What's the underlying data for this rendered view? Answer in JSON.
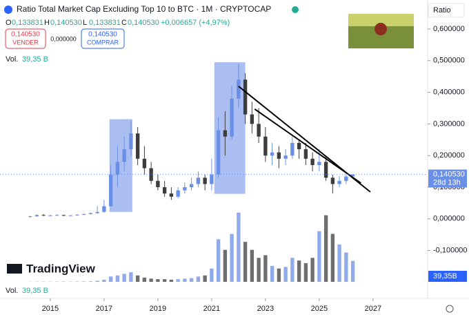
{
  "chart_data": {
    "type": "candlestick",
    "title": "Ratio Total Market Cap Excluding Top 10 to BTC · 1M · CRYPTOCAP",
    "x": [
      2014.25,
      2014.5,
      2014.75,
      2015,
      2015.25,
      2015.5,
      2015.75,
      2016,
      2016.25,
      2016.5,
      2016.75,
      2017,
      2017.25,
      2017.5,
      2017.75,
      2018,
      2018.25,
      2018.5,
      2018.75,
      2019,
      2019.25,
      2019.5,
      2019.75,
      2020,
      2020.25,
      2020.5,
      2020.75,
      2021,
      2021.25,
      2021.5,
      2021.75,
      2022,
      2022.25,
      2022.5,
      2022.75,
      2023,
      2023.25,
      2023.5,
      2023.75,
      2024,
      2024.25,
      2024.5,
      2024.75,
      2025,
      2025.25,
      2025.5,
      2025.75,
      2026,
      2026.25
    ],
    "open": [
      0.006,
      0.008,
      0.012,
      0.01,
      0.011,
      0.012,
      0.01,
      0.011,
      0.013,
      0.015,
      0.018,
      0.022,
      0.04,
      0.14,
      0.18,
      0.22,
      0.27,
      0.19,
      0.16,
      0.12,
      0.1,
      0.08,
      0.07,
      0.09,
      0.1,
      0.11,
      0.13,
      0.11,
      0.14,
      0.28,
      0.26,
      0.38,
      0.44,
      0.33,
      0.3,
      0.26,
      0.2,
      0.21,
      0.19,
      0.2,
      0.24,
      0.22,
      0.19,
      0.17,
      0.18,
      0.13,
      0.11,
      0.12,
      0.133831
    ],
    "high": [
      0.01,
      0.014,
      0.015,
      0.013,
      0.014,
      0.013,
      0.012,
      0.015,
      0.017,
      0.02,
      0.04,
      0.06,
      0.17,
      0.23,
      0.26,
      0.31,
      0.29,
      0.23,
      0.18,
      0.14,
      0.12,
      0.1,
      0.1,
      0.115,
      0.13,
      0.15,
      0.14,
      0.19,
      0.32,
      0.34,
      0.42,
      0.49,
      0.46,
      0.37,
      0.35,
      0.29,
      0.24,
      0.23,
      0.22,
      0.26,
      0.25,
      0.24,
      0.21,
      0.22,
      0.2,
      0.14,
      0.135,
      0.14,
      0.14053
    ],
    "low": [
      0.004,
      0.007,
      0.009,
      0.009,
      0.01,
      0.009,
      0.009,
      0.01,
      0.012,
      0.014,
      0.016,
      0.02,
      0.038,
      0.1,
      0.15,
      0.2,
      0.17,
      0.14,
      0.11,
      0.09,
      0.07,
      0.06,
      0.065,
      0.08,
      0.09,
      0.1,
      0.09,
      0.09,
      0.13,
      0.2,
      0.25,
      0.35,
      0.3,
      0.27,
      0.24,
      0.18,
      0.17,
      0.16,
      0.17,
      0.19,
      0.19,
      0.17,
      0.15,
      0.15,
      0.12,
      0.08,
      0.1,
      0.11,
      0.133831
    ],
    "close": [
      0.008,
      0.012,
      0.01,
      0.011,
      0.012,
      0.01,
      0.011,
      0.013,
      0.015,
      0.018,
      0.022,
      0.04,
      0.14,
      0.18,
      0.22,
      0.27,
      0.19,
      0.16,
      0.12,
      0.1,
      0.08,
      0.07,
      0.09,
      0.1,
      0.11,
      0.13,
      0.11,
      0.14,
      0.28,
      0.26,
      0.38,
      0.44,
      0.33,
      0.3,
      0.26,
      0.2,
      0.21,
      0.19,
      0.2,
      0.24,
      0.22,
      0.19,
      0.17,
      0.18,
      0.13,
      0.11,
      0.12,
      0.133873,
      0.14053
    ],
    "up_color": "#6a8fe6",
    "down_color": "#3d3d3d",
    "volume": {
      "name": "Vol.",
      "axis": "y2",
      "axis_tag": "39,35B",
      "values": [
        0.3,
        0.4,
        0.3,
        0.4,
        0.5,
        0.4,
        0.5,
        0.6,
        0.8,
        1,
        2,
        4,
        10,
        12,
        15,
        18,
        12,
        8,
        6,
        5,
        5,
        4,
        5,
        6,
        7,
        10,
        12,
        25,
        80,
        60,
        90,
        130,
        75,
        60,
        45,
        50,
        30,
        25,
        28,
        45,
        40,
        35,
        45,
        95,
        125,
        90,
        70,
        55,
        39.35
      ],
      "value_labels": [
        null,
        null,
        null,
        null,
        null,
        null,
        null,
        null,
        null,
        null,
        null,
        null,
        null,
        null,
        null,
        null,
        null,
        null,
        null,
        null,
        null,
        null,
        null,
        null,
        null,
        null,
        null,
        null,
        null,
        null,
        null,
        null,
        null,
        null,
        null,
        null,
        null,
        null,
        null,
        null,
        null,
        null,
        null,
        null,
        null,
        null,
        null,
        null,
        "39,35 B"
      ]
    },
    "xlim": [
      2013.13,
      2029.03
    ],
    "xticks": [
      2015,
      2017,
      2019,
      2021,
      2023,
      2025,
      2027
    ],
    "ylim": [
      -0.2035,
      0.6917
    ],
    "yticks": [
      {
        "value": 0.6,
        "label": "0,600000"
      },
      {
        "value": 0.5,
        "label": "0,500000"
      },
      {
        "value": 0.4,
        "label": "0,400000"
      },
      {
        "value": 0.3,
        "label": "0,300000"
      },
      {
        "value": 0.2,
        "label": "0,200000"
      },
      {
        "value": 0.1,
        "label": "0,100000"
      },
      {
        "value": 0,
        "label": "0,000000"
      },
      {
        "value": -0.1,
        "label": "-0,100000"
      }
    ],
    "y2lim": [
      0,
      140
    ],
    "boxes": [
      {
        "x": [
          2017.2,
          2018.05
        ],
        "y": [
          0.022,
          0.315
        ]
      },
      {
        "x": [
          2021.1,
          2022.25
        ],
        "y": [
          0.079,
          0.495
        ]
      }
    ],
    "box_color": "#8fa8ee",
    "trendlines": [
      {
        "x": [
          2022.0,
          2026.9
        ],
        "y": [
          0.419,
          0.085
        ]
      },
      {
        "x": [
          2022.6,
          2026.55
        ],
        "y": [
          0.347,
          0.113
        ]
      }
    ],
    "current_price": {
      "value": 0.14053,
      "label": "0,140530",
      "countdown": "28d 13h"
    }
  },
  "ui": {
    "scale_button": "Ratio",
    "ohlc": [
      {
        "key": "O",
        "text": "0,133831"
      },
      {
        "key": "H",
        "text": "0,140530"
      },
      {
        "key": "L",
        "text": "0,133831"
      },
      {
        "key": "C",
        "text": "0,140530"
      }
    ],
    "change": "+0,006657 (+4,97%)",
    "sell": {
      "price": "0,140530",
      "label": "VENDER"
    },
    "spread": "0,000000",
    "buy": {
      "price": "0,140530",
      "label": "COMPRAR"
    },
    "logo": "TradingView"
  }
}
